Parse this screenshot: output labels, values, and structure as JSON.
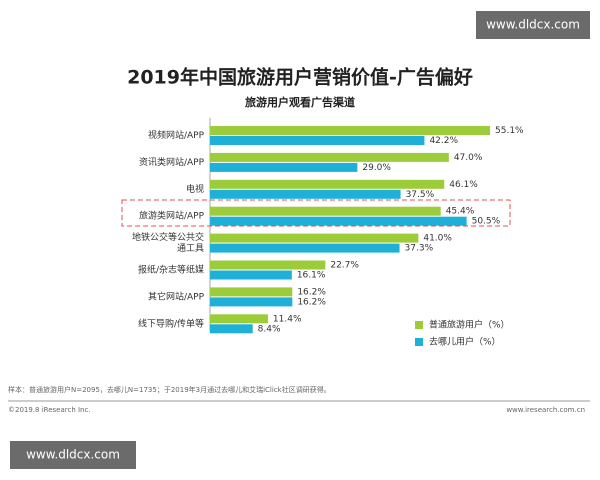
{
  "watermark": "www.dldcx.com",
  "chart_data": {
    "type": "bar",
    "orientation": "horizontal",
    "title": "2019年中国旅游用户营销价值-广告偏好",
    "subtitle": "旅游用户观看广告渠道",
    "categories": [
      "视频网站/APP",
      "资讯类网站/APP",
      "电视",
      "旅游类网站/APP",
      "地铁公交等公共交\n通工具",
      "报纸/杂志等纸媒",
      "其它网站/APP",
      "线下导购/传单等"
    ],
    "series": [
      {
        "name": "普通旅游用户（%）",
        "color": "#9ccc3a",
        "values": [
          55.1,
          47.0,
          46.1,
          45.4,
          41.0,
          22.7,
          16.2,
          11.4
        ],
        "value_labels": [
          "55.1%",
          "47.0%",
          "46.1%",
          "45.4%",
          "41.0%",
          "22.7%",
          "16.2%",
          "11.4%"
        ]
      },
      {
        "name": "去哪儿用户（%）",
        "color": "#1fb0d8",
        "values": [
          42.2,
          29.0,
          37.5,
          50.5,
          37.3,
          16.1,
          16.2,
          8.4
        ],
        "value_labels": [
          "42.2%",
          "29.0%",
          "37.5%",
          "50.5%",
          "37.3%",
          "16.1%",
          "16.2%",
          "8.4%"
        ]
      }
    ],
    "legend": "bottom-right",
    "note": "样本：普通旅游用户N=2095，去哪儿N=1735；于2019年3月通过去哪儿和艾瑞iClick社区调研获得。",
    "copyright": "©2019.8 iResearch Inc.",
    "source_url": "www.iresearch.com.cn"
  }
}
